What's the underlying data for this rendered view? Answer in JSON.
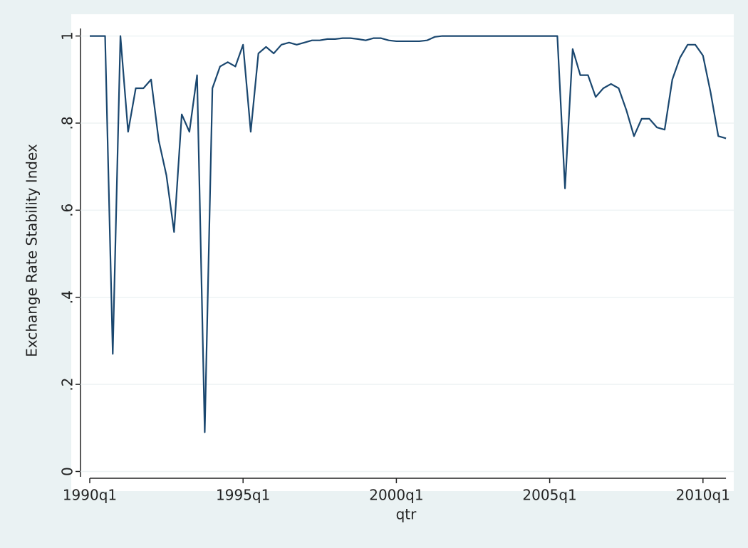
{
  "chart_data": {
    "type": "line",
    "y_label": "Exchange Rate Stability Index",
    "x_label": "qtr",
    "x": [
      "1990q1",
      "1990q2",
      "1990q3",
      "1990q4",
      "1991q1",
      "1991q2",
      "1991q3",
      "1991q4",
      "1992q1",
      "1992q2",
      "1992q3",
      "1992q4",
      "1993q1",
      "1993q2",
      "1993q3",
      "1993q4",
      "1994q1",
      "1994q2",
      "1994q3",
      "1994q4",
      "1995q1",
      "1995q2",
      "1995q3",
      "1995q4",
      "1996q1",
      "1996q2",
      "1996q3",
      "1996q4",
      "1997q1",
      "1997q2",
      "1997q3",
      "1997q4",
      "1998q1",
      "1998q2",
      "1998q3",
      "1998q4",
      "1999q1",
      "1999q2",
      "1999q3",
      "1999q4",
      "2000q1",
      "2000q2",
      "2000q3",
      "2000q4",
      "2001q1",
      "2001q2",
      "2001q3",
      "2001q4",
      "2002q1",
      "2002q2",
      "2002q3",
      "2002q4",
      "2003q1",
      "2003q2",
      "2003q3",
      "2003q4",
      "2004q1",
      "2004q2",
      "2004q3",
      "2004q4",
      "2005q1",
      "2005q2",
      "2005q3",
      "2005q4",
      "2006q1",
      "2006q2",
      "2006q3",
      "2006q4",
      "2007q1",
      "2007q2",
      "2007q3",
      "2007q4",
      "2008q1",
      "2008q2",
      "2008q3",
      "2008q4",
      "2009q1",
      "2009q2",
      "2009q3",
      "2009q4",
      "2010q1",
      "2010q2",
      "2010q3",
      "2010q4"
    ],
    "series": [
      {
        "name": "Exchange Rate Stability Index",
        "color": "#1a476f",
        "values": [
          1,
          1,
          1,
          0.27,
          1,
          0.78,
          0.88,
          0.88,
          0.9,
          0.76,
          0.68,
          0.55,
          0.82,
          0.78,
          0.91,
          0.09,
          0.88,
          0.93,
          0.94,
          0.93,
          0.98,
          0.78,
          0.96,
          0.975,
          0.96,
          0.98,
          0.985,
          0.98,
          0.985,
          0.99,
          0.99,
          0.993,
          0.993,
          0.995,
          0.995,
          0.993,
          0.99,
          0.995,
          0.995,
          0.99,
          0.988,
          0.988,
          0.988,
          0.988,
          0.99,
          0.998,
          1,
          1,
          1,
          1,
          1,
          1,
          1,
          1,
          1,
          1,
          1,
          1,
          1,
          1,
          1,
          1,
          0.65,
          0.97,
          0.91,
          0.91,
          0.86,
          0.88,
          0.89,
          0.88,
          0.83,
          0.77,
          0.81,
          0.81,
          0.79,
          0.785,
          0.9,
          0.95,
          0.98,
          0.98,
          0.955,
          0.87,
          0.77,
          0.765
        ]
      }
    ],
    "ylim": [
      -0.045,
      1.05
    ],
    "yticks": [
      0,
      {
        "value": 0.2,
        "label": ".2"
      },
      {
        "value": 0.4,
        "label": ".4"
      },
      {
        "value": 0.6,
        "label": ".6"
      },
      {
        "value": 0.8,
        "label": ".8"
      },
      1
    ],
    "xticks": [
      "1990q1",
      "1995q1",
      "2000q1",
      "2005q1",
      "2010q1"
    ],
    "grid": true
  }
}
